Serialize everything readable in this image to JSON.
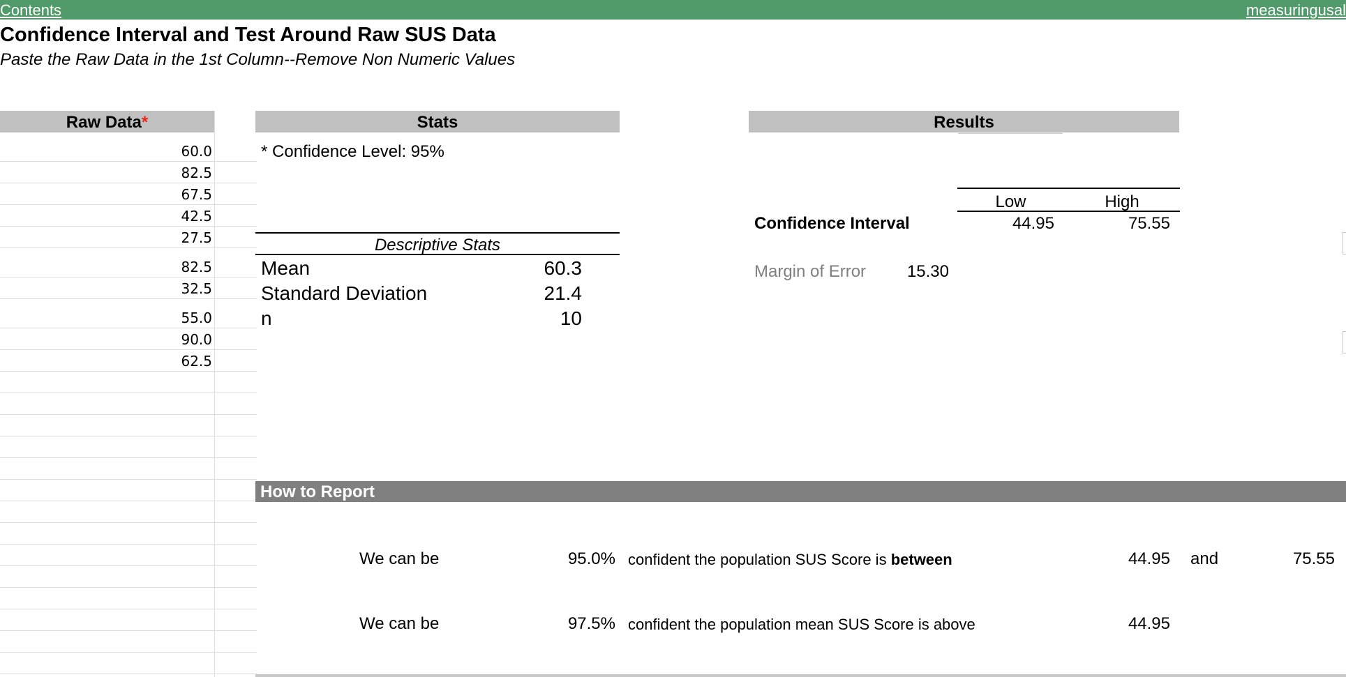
{
  "topbar": {
    "contents_link": "Contents",
    "site_link": "measuringusal"
  },
  "title": "Confidence Interval and Test Around Raw SUS Data",
  "subtitle": "Paste the Raw Data in the 1st Column--Remove Non Numeric Values",
  "raw": {
    "header": "Raw Data",
    "asterisk": "*",
    "values": [
      "60.0",
      "82.5",
      "67.5",
      "42.5",
      "27.5",
      "82.5",
      "32.5",
      "55.0",
      "90.0",
      "62.5"
    ]
  },
  "stats": {
    "header": "Stats",
    "confidence_level": "*  Confidence Level: 95%",
    "descriptive_title": "Descriptive Stats",
    "mean_label": "Mean",
    "mean_value": "60.3",
    "sd_label": "Standard Deviation",
    "sd_value": "21.4",
    "n_label": "n",
    "n_value": "10"
  },
  "results": {
    "header": "Results",
    "low_label": "Low",
    "high_label": "High",
    "ci_label": "Confidence Interval",
    "ci_low": "44.95",
    "ci_high": "75.55",
    "moe_label": "Margin of Error",
    "moe_value": "15.30"
  },
  "report": {
    "title": "How to Report",
    "row1": {
      "prefix": "We can be",
      "pct": "95.0%",
      "text": "confident the population SUS Score is ",
      "text_bold": "between",
      "num": "44.95",
      "and": "and",
      "num2": "75.55"
    },
    "row2": {
      "prefix": "We can be",
      "pct": "97.5%",
      "text": "confident the population mean SUS Score is above",
      "num": "44.95"
    }
  },
  "colors": {
    "topbar": "#519a6a",
    "header_grey": "#c0c0c0",
    "report_bar": "#808080",
    "asterisk": "#e8281e"
  }
}
